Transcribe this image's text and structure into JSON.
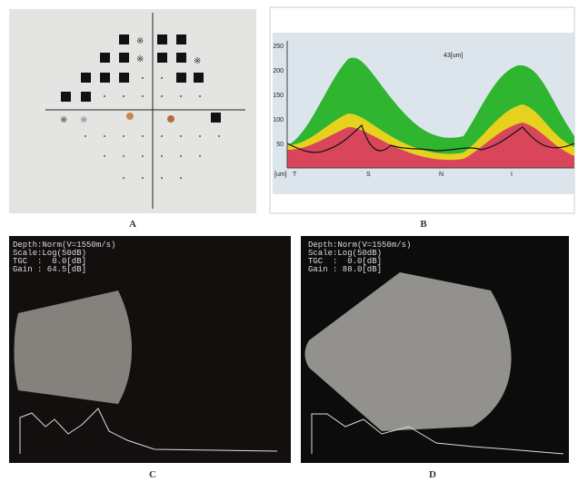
{
  "panels": [
    {
      "label": "A"
    },
    {
      "label": "B",
      "y_axis_labels": [
        "250",
        "200",
        "150",
        "100",
        "50"
      ],
      "unit": "[um]",
      "x_axis_labels": [
        "T",
        "S",
        "N",
        "I"
      ],
      "annotation": "43[um]"
    },
    {
      "label": "C",
      "readout": [
        "Depth:Norm(V=1550m/s)",
        "Scale:Log(50dB)",
        "TGC  :  0.0[dB]",
        "Gain : 64.5[dB]"
      ]
    },
    {
      "label": "D",
      "readout": [
        "Depth:Norm(V=1550m/s)",
        "Scale:Log(50dB)",
        "TGC  :  0.0[dB]",
        "Gain : 88.0[dB]"
      ]
    }
  ]
}
